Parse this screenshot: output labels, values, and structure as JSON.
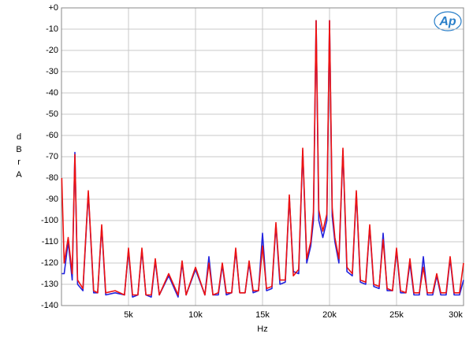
{
  "chart_data": {
    "type": "line",
    "logo_text": "Ap",
    "y_label": "dBrA",
    "x_label": "Hz",
    "x": [
      20,
      200,
      500,
      800,
      1000,
      1200,
      1600,
      2000,
      2400,
      2700,
      3000,
      3300,
      4000,
      4700,
      5000,
      5300,
      5700,
      6000,
      6300,
      6700,
      7000,
      7300,
      8000,
      8700,
      9000,
      9300,
      10000,
      10700,
      11000,
      11300,
      11700,
      12000,
      12300,
      12700,
      13000,
      13300,
      13700,
      14000,
      14300,
      14700,
      15000,
      15300,
      15700,
      16000,
      16300,
      16700,
      17000,
      17300,
      17700,
      18000,
      18300,
      18600,
      18800,
      19000,
      19200,
      19500,
      19800,
      20000,
      20200,
      20400,
      20700,
      21000,
      21300,
      21700,
      22000,
      22300,
      22700,
      23000,
      23300,
      23700,
      24000,
      24300,
      24700,
      25000,
      25300,
      25700,
      26000,
      26300,
      26700,
      27000,
      27300,
      27700,
      28000,
      28300,
      28700,
      29000,
      29300,
      29700,
      30000
    ],
    "series": [
      {
        "color": "#2222dd",
        "values": [
          -125,
          -125,
          -110,
          -128,
          -68,
          -130,
          -133,
          -87,
          -134,
          -134,
          -103,
          -135,
          -134,
          -135,
          -114,
          -136,
          -135,
          -114,
          -135,
          -136,
          -119,
          -135,
          -126,
          -136,
          -120,
          -135,
          -123,
          -135,
          -117,
          -135,
          -135,
          -121,
          -135,
          -134,
          -114,
          -134,
          -134,
          -120,
          -134,
          -133,
          -106,
          -133,
          -132,
          -102,
          -130,
          -129,
          -89,
          -124,
          -125,
          -67,
          -120,
          -112,
          -100,
          -6,
          -100,
          -108,
          -100,
          -6,
          -98,
          -110,
          -120,
          -67,
          -124,
          -126,
          -87,
          -129,
          -130,
          -103,
          -131,
          -132,
          -106,
          -133,
          -133,
          -114,
          -134,
          -134,
          -120,
          -135,
          -135,
          -117,
          -135,
          -135,
          -126,
          -135,
          -135,
          -118,
          -135,
          -135,
          -128
        ]
      },
      {
        "color": "#ee1111",
        "values": [
          -80,
          -120,
          -108,
          -125,
          -69,
          -128,
          -132,
          -86,
          -133,
          -134,
          -102,
          -134,
          -133,
          -135,
          -113,
          -135,
          -135,
          -113,
          -135,
          -135,
          -118,
          -135,
          -125,
          -135,
          -119,
          -135,
          -122,
          -135,
          -120,
          -135,
          -134,
          -120,
          -134,
          -134,
          -113,
          -134,
          -134,
          -119,
          -133,
          -133,
          -112,
          -132,
          -131,
          -101,
          -128,
          -128,
          -88,
          -126,
          -123,
          -66,
          -118,
          -110,
          -96,
          -6,
          -95,
          -105,
          -97,
          -6,
          -94,
          -108,
          -118,
          -66,
          -122,
          -125,
          -86,
          -128,
          -129,
          -102,
          -130,
          -131,
          -109,
          -132,
          -133,
          -113,
          -133,
          -134,
          -118,
          -134,
          -134,
          -122,
          -134,
          -134,
          -125,
          -134,
          -134,
          -117,
          -134,
          -134,
          -120
        ]
      }
    ],
    "xlim": [
      0,
      30000
    ],
    "ylim": [
      -140,
      0
    ],
    "xticks": [
      {
        "value": 5000,
        "label": "5k"
      },
      {
        "value": 10000,
        "label": "10k"
      },
      {
        "value": 15000,
        "label": "15k"
      },
      {
        "value": 20000,
        "label": "20k"
      },
      {
        "value": 25000,
        "label": "25k"
      },
      {
        "value": 30000,
        "label": "30k"
      }
    ],
    "yticks": [
      {
        "value": 0,
        "label": "+0"
      },
      -10,
      -20,
      -30,
      -40,
      -50,
      -60,
      -70,
      -80,
      -90,
      -100,
      -110,
      -120,
      -130,
      -140
    ],
    "grid": true
  }
}
